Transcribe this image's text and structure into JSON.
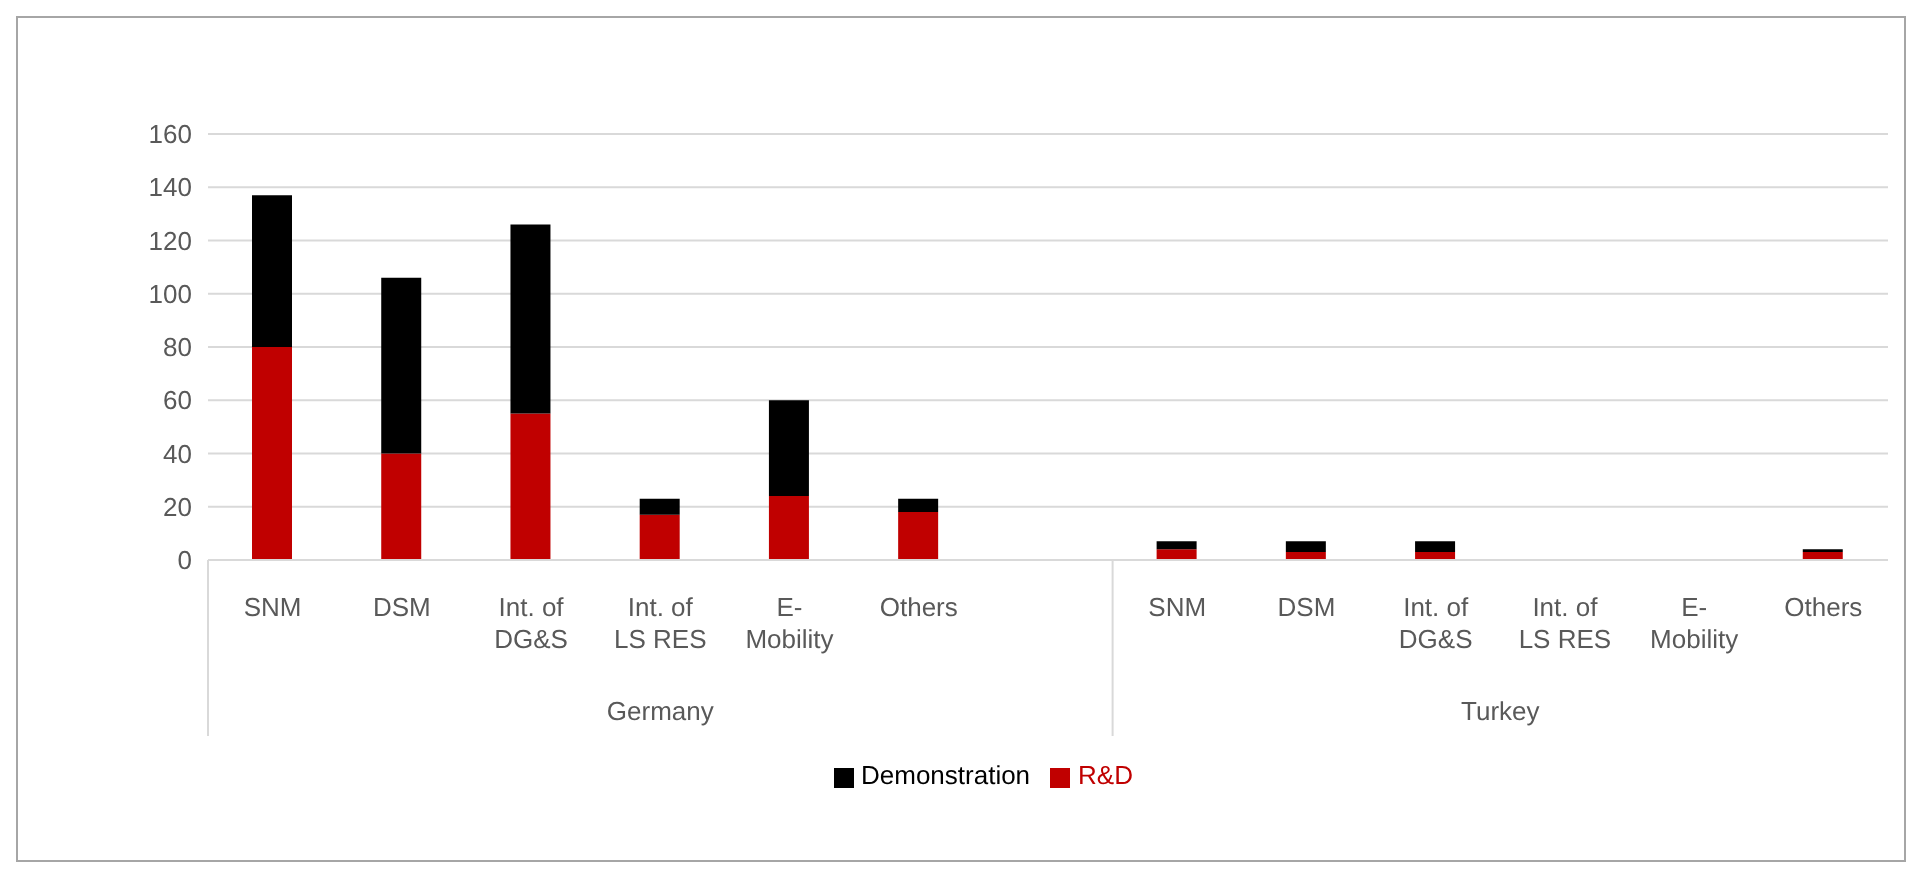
{
  "chart_data": {
    "type": "bar",
    "stacked": true,
    "categories": [
      "SNM",
      "DSM",
      "Int. of DG&S",
      "Int. of LS RES",
      "E-Mobility",
      "Others",
      null,
      "SNM",
      "DSM",
      "Int. of DG&S",
      "Int. of LS RES",
      "E-Mobility",
      "Others"
    ],
    "series": [
      {
        "name": "R&D",
        "color": "#c00000",
        "values": [
          80,
          40,
          55,
          17,
          24,
          18,
          null,
          4,
          3,
          3,
          0,
          0,
          3
        ]
      },
      {
        "name": "Demonstration",
        "color": "#000000",
        "values": [
          57,
          66,
          71,
          6,
          36,
          5,
          null,
          3,
          4,
          4,
          0,
          0,
          1
        ]
      }
    ],
    "annotations": [
      "Germany",
      "Turkey"
    ],
    "ylim": [
      0,
      160
    ],
    "yticks": [
      0,
      20,
      40,
      60,
      80,
      100,
      120,
      140,
      160
    ],
    "grid": "y",
    "legend": "bottom"
  }
}
